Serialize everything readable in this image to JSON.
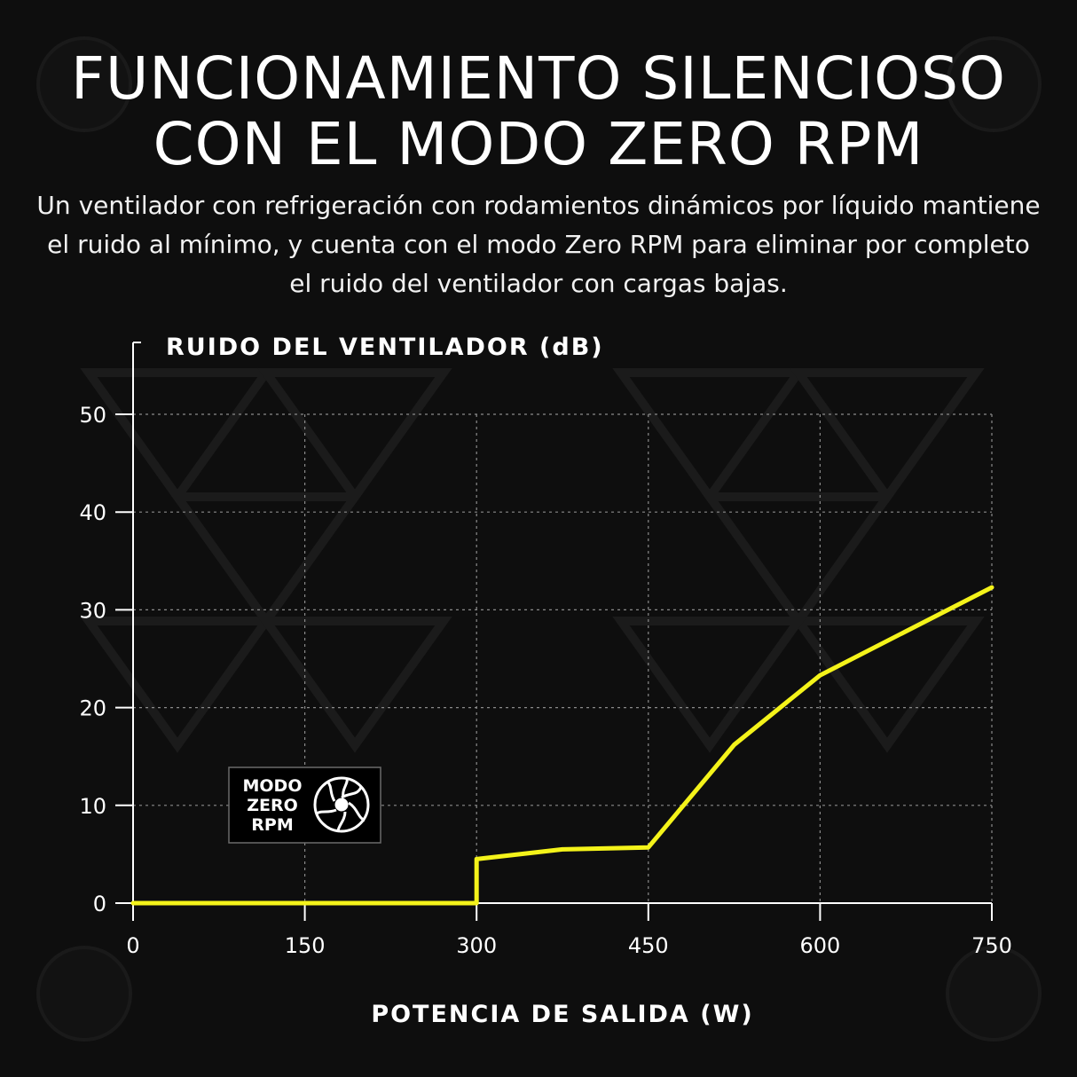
{
  "header": {
    "title_line1": "FUNCIONAMIENTO SILENCIOSO",
    "title_line2": "CON EL MODO ZERO RPM",
    "description": "Un ventilador con refrigeración con rodamientos dinámicos por líquido mantiene el ruido al mínimo, y cuenta con el modo Zero RPM para eliminar por completo el ruido del ventilador con cargas bajas."
  },
  "badge": {
    "line1": "MODO",
    "line2": "ZERO",
    "line3": "RPM",
    "icon": "fan-icon"
  },
  "colors": {
    "background": "#0e0e0e",
    "line": "#f4f31a",
    "grid": "#8a8a8a",
    "text": "#ffffff"
  },
  "chart_data": {
    "type": "line",
    "title": "",
    "xlabel": "POTENCIA DE SALIDA (W)",
    "ylabel": "RUIDO DEL VENTILADOR (dB)",
    "xlim": [
      0,
      750
    ],
    "ylim": [
      0,
      50
    ],
    "xticks": [
      0,
      150,
      300,
      450,
      600,
      750
    ],
    "yticks": [
      0,
      10,
      20,
      30,
      40,
      50
    ],
    "grid": true,
    "series": [
      {
        "x": [
          0,
          300,
          300,
          375,
          450,
          525,
          600,
          675,
          750
        ],
        "y": [
          0,
          0,
          4.5,
          5.5,
          5.7,
          16.2,
          23.3,
          27.8,
          32.3
        ]
      }
    ]
  }
}
